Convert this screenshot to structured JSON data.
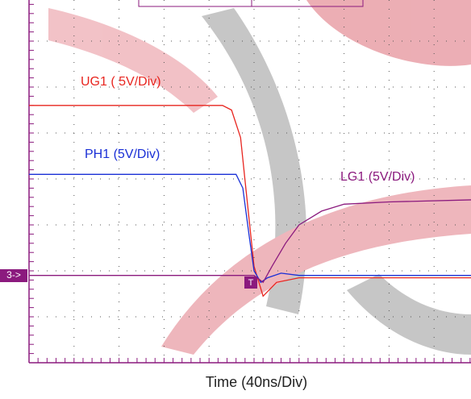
{
  "chart_data": {
    "type": "line",
    "x_label": "Time (40ns/Div)",
    "xlim": [
      0,
      10
    ],
    "ylim": [
      0,
      8
    ],
    "grid": true,
    "channel_marker": "3->",
    "trigger_marker": "T",
    "series": [
      {
        "name": "UG1 ( 5V/Div)",
        "color": "#e8251f",
        "x": [
          0,
          4.3,
          4.5,
          4.7,
          4.85,
          5.0,
          5.2,
          5.5,
          6.0,
          10
        ],
        "values": [
          5.6,
          5.6,
          5.5,
          4.9,
          3.5,
          2.1,
          1.45,
          1.75,
          1.85,
          1.85
        ]
      },
      {
        "name": "PH1 (5V/Div)",
        "color": "#1a2fd6",
        "x": [
          0,
          4.6,
          4.75,
          4.9,
          5.0,
          5.15,
          5.3,
          5.6,
          6.0,
          10
        ],
        "values": [
          4.1,
          4.1,
          3.8,
          2.7,
          2.0,
          1.75,
          1.85,
          1.95,
          1.9,
          1.9
        ]
      },
      {
        "name": "LG1 (5V/Div)",
        "color": "#8b1a7e",
        "x": [
          0,
          5.0,
          5.2,
          5.4,
          5.7,
          6.0,
          6.5,
          7.0,
          8.0,
          10
        ],
        "values": [
          1.9,
          1.9,
          1.75,
          2.1,
          2.6,
          3.0,
          3.3,
          3.45,
          3.5,
          3.55
        ]
      }
    ]
  }
}
